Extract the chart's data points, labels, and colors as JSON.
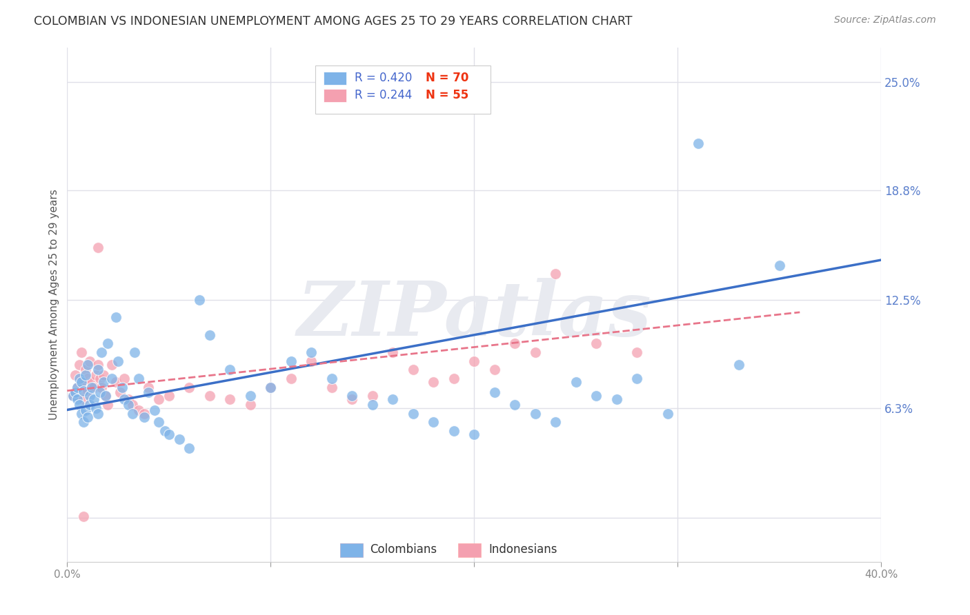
{
  "title": "COLOMBIAN VS INDONESIAN UNEMPLOYMENT AMONG AGES 25 TO 29 YEARS CORRELATION CHART",
  "source": "Source: ZipAtlas.com",
  "ylabel": "Unemployment Among Ages 25 to 29 years",
  "xlim": [
    0.0,
    0.4
  ],
  "ylim": [
    -0.025,
    0.27
  ],
  "xticks": [
    0.0,
    0.1,
    0.2,
    0.3,
    0.4
  ],
  "xticklabels": [
    "0.0%",
    "",
    "",
    "",
    "40.0%"
  ],
  "yticks": [
    0.0,
    0.063,
    0.125,
    0.188,
    0.25
  ],
  "ytick_right_labels": [
    "",
    "6.3%",
    "12.5%",
    "18.8%",
    "25.0%"
  ],
  "legend_blue_r": "R = 0.420",
  "legend_blue_n": "N = 70",
  "legend_pink_r": "R = 0.244",
  "legend_pink_n": "N = 55",
  "colombians_label": "Colombians",
  "indonesians_label": "Indonesians",
  "blue_color": "#7EB3E8",
  "pink_color": "#F4A0B0",
  "blue_line_color": "#3B6FC7",
  "pink_line_color": "#E8758A",
  "watermark": "ZIPatlas",
  "watermark_color": "#E8EAF0",
  "background_color": "#FFFFFF",
  "grid_color": "#E0E0E8",
  "title_color": "#333333",
  "right_tick_color": "#5B7FCC",
  "colombians_x": [
    0.003,
    0.004,
    0.005,
    0.005,
    0.006,
    0.006,
    0.007,
    0.007,
    0.008,
    0.008,
    0.009,
    0.009,
    0.01,
    0.01,
    0.011,
    0.011,
    0.012,
    0.013,
    0.014,
    0.015,
    0.015,
    0.016,
    0.017,
    0.018,
    0.019,
    0.02,
    0.022,
    0.024,
    0.025,
    0.027,
    0.028,
    0.03,
    0.032,
    0.033,
    0.035,
    0.038,
    0.04,
    0.043,
    0.045,
    0.048,
    0.05,
    0.055,
    0.06,
    0.065,
    0.07,
    0.08,
    0.09,
    0.1,
    0.11,
    0.12,
    0.13,
    0.14,
    0.15,
    0.16,
    0.17,
    0.18,
    0.19,
    0.2,
    0.21,
    0.22,
    0.23,
    0.24,
    0.25,
    0.26,
    0.27,
    0.28,
    0.295,
    0.31,
    0.33,
    0.35
  ],
  "colombians_y": [
    0.07,
    0.072,
    0.068,
    0.075,
    0.065,
    0.08,
    0.06,
    0.078,
    0.055,
    0.073,
    0.062,
    0.082,
    0.058,
    0.088,
    0.07,
    0.065,
    0.075,
    0.068,
    0.063,
    0.06,
    0.085,
    0.072,
    0.095,
    0.078,
    0.07,
    0.1,
    0.08,
    0.115,
    0.09,
    0.075,
    0.068,
    0.065,
    0.06,
    0.095,
    0.08,
    0.058,
    0.072,
    0.062,
    0.055,
    0.05,
    0.048,
    0.045,
    0.04,
    0.125,
    0.105,
    0.085,
    0.07,
    0.075,
    0.09,
    0.095,
    0.08,
    0.07,
    0.065,
    0.068,
    0.06,
    0.055,
    0.05,
    0.048,
    0.072,
    0.065,
    0.06,
    0.055,
    0.078,
    0.07,
    0.068,
    0.08,
    0.06,
    0.215,
    0.088,
    0.145
  ],
  "indonesians_x": [
    0.003,
    0.004,
    0.005,
    0.006,
    0.007,
    0.007,
    0.008,
    0.008,
    0.009,
    0.01,
    0.01,
    0.011,
    0.012,
    0.013,
    0.014,
    0.015,
    0.016,
    0.017,
    0.018,
    0.019,
    0.02,
    0.022,
    0.024,
    0.026,
    0.028,
    0.03,
    0.032,
    0.035,
    0.038,
    0.04,
    0.045,
    0.05,
    0.06,
    0.07,
    0.08,
    0.09,
    0.1,
    0.11,
    0.12,
    0.13,
    0.14,
    0.15,
    0.16,
    0.17,
    0.18,
    0.19,
    0.2,
    0.21,
    0.22,
    0.23,
    0.24,
    0.26,
    0.28,
    0.008,
    0.015
  ],
  "indonesians_y": [
    0.07,
    0.082,
    0.075,
    0.088,
    0.072,
    0.095,
    0.078,
    0.068,
    0.085,
    0.08,
    0.073,
    0.09,
    0.078,
    0.075,
    0.082,
    0.088,
    0.08,
    0.075,
    0.082,
    0.07,
    0.065,
    0.088,
    0.078,
    0.072,
    0.08,
    0.068,
    0.065,
    0.062,
    0.06,
    0.075,
    0.068,
    0.07,
    0.075,
    0.07,
    0.068,
    0.065,
    0.075,
    0.08,
    0.09,
    0.075,
    0.068,
    0.07,
    0.095,
    0.085,
    0.078,
    0.08,
    0.09,
    0.085,
    0.1,
    0.095,
    0.14,
    0.1,
    0.095,
    0.001,
    0.155
  ],
  "blue_trend_x": [
    0.0,
    0.4
  ],
  "blue_trend_y": [
    0.062,
    0.148
  ],
  "pink_trend_x": [
    0.0,
    0.36
  ],
  "pink_trend_y": [
    0.073,
    0.118
  ]
}
